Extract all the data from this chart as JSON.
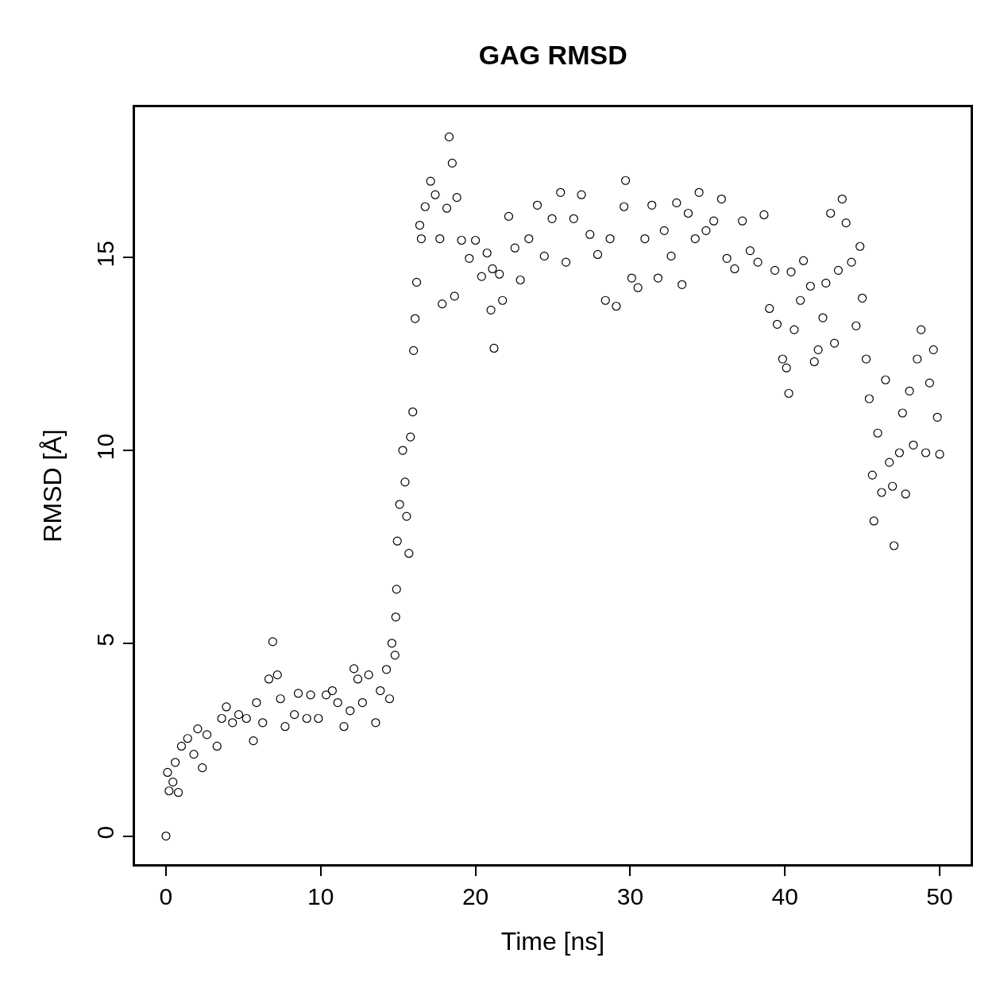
{
  "chart_data": {
    "type": "scatter",
    "title": "GAG RMSD",
    "xlabel": "Time [ns]",
    "ylabel": "RMSD [Å]",
    "xlim": [
      -2,
      52
    ],
    "xticks": [
      0,
      10,
      20,
      30,
      40,
      50
    ],
    "ylim": [
      -0.73,
      18.9
    ],
    "yticks": [
      0,
      5,
      10,
      15
    ],
    "marker": "circle",
    "x": [
      0,
      0.1,
      0.2,
      0.45,
      0.6,
      0.8,
      1.0,
      1.4,
      1.8,
      2.05,
      2.35,
      2.65,
      3.3,
      3.6,
      3.9,
      4.3,
      4.7,
      5.2,
      5.65,
      5.85,
      6.25,
      6.65,
      6.9,
      7.2,
      7.4,
      7.7,
      8.3,
      8.55,
      9.1,
      9.35,
      9.85,
      10.35,
      10.75,
      11.1,
      11.5,
      11.9,
      12.15,
      12.4,
      12.7,
      13.1,
      13.55,
      13.85,
      14.25,
      14.45,
      14.6,
      14.8,
      14.85,
      14.9,
      14.95,
      15.1,
      15.3,
      15.45,
      15.55,
      15.7,
      15.8,
      15.95,
      16.0,
      16.1,
      16.2,
      16.4,
      16.5,
      16.75,
      17.1,
      17.4,
      17.7,
      17.85,
      18.15,
      18.3,
      18.5,
      18.65,
      18.8,
      19.1,
      19.6,
      20.0,
      20.4,
      20.75,
      21.0,
      21.1,
      21.2,
      21.55,
      21.75,
      22.15,
      22.55,
      22.9,
      23.45,
      24.0,
      24.45,
      24.95,
      25.5,
      25.85,
      26.35,
      26.85,
      27.4,
      27.9,
      28.4,
      28.7,
      29.1,
      29.6,
      29.7,
      30.1,
      30.5,
      30.95,
      31.4,
      31.8,
      32.2,
      32.65,
      33.0,
      33.35,
      33.75,
      34.2,
      34.45,
      34.9,
      35.4,
      35.9,
      36.25,
      36.75,
      37.25,
      37.75,
      38.25,
      38.65,
      39.0,
      39.35,
      39.5,
      39.85,
      40.1,
      40.25,
      40.4,
      40.6,
      41.0,
      41.2,
      41.65,
      41.9,
      42.15,
      42.45,
      42.65,
      42.95,
      43.2,
      43.45,
      43.7,
      43.95,
      44.3,
      44.6,
      44.85,
      45.0,
      45.25,
      45.45,
      45.65,
      45.75,
      46.0,
      46.25,
      46.5,
      46.75,
      46.95,
      47.05,
      47.4,
      47.6,
      47.8,
      48.05,
      48.3,
      48.55,
      48.8,
      49.1,
      49.35,
      49.6,
      49.85,
      50.0
    ],
    "series": [
      {
        "color": "#000000",
        "values": [
          0,
          1.65,
          1.17,
          1.4,
          1.91,
          1.13,
          2.33,
          2.53,
          2.12,
          2.78,
          1.77,
          2.63,
          2.33,
          3.05,
          3.35,
          2.94,
          3.15,
          3.05,
          2.47,
          3.46,
          2.94,
          4.07,
          5.04,
          4.18,
          3.56,
          2.84,
          3.15,
          3.7,
          3.05,
          3.66,
          3.05,
          3.66,
          3.77,
          3.46,
          2.84,
          3.25,
          4.34,
          4.07,
          3.46,
          4.18,
          2.94,
          3.77,
          4.32,
          3.56,
          5.0,
          4.69,
          5.68,
          6.4,
          7.65,
          8.6,
          10.0,
          9.18,
          8.29,
          7.33,
          10.35,
          11.0,
          12.59,
          13.42,
          14.36,
          15.84,
          15.49,
          16.32,
          16.98,
          16.63,
          15.49,
          13.8,
          16.28,
          18.13,
          17.45,
          14.0,
          16.56,
          15.45,
          14.98,
          15.45,
          14.51,
          15.12,
          13.64,
          14.71,
          12.65,
          14.57,
          13.89,
          16.07,
          15.25,
          14.42,
          15.49,
          16.36,
          15.04,
          16.01,
          16.69,
          14.88,
          16.01,
          16.63,
          15.6,
          15.08,
          13.89,
          15.49,
          13.74,
          16.32,
          17.0,
          14.47,
          14.22,
          15.49,
          16.36,
          14.47,
          15.7,
          15.04,
          16.42,
          14.3,
          16.15,
          15.49,
          16.69,
          15.7,
          15.95,
          16.52,
          14.98,
          14.71,
          15.95,
          15.18,
          14.88,
          16.11,
          13.68,
          14.67,
          13.27,
          12.37,
          12.14,
          11.48,
          14.63,
          13.13,
          13.89,
          14.92,
          14.26,
          12.3,
          12.61,
          13.44,
          14.34,
          16.15,
          12.78,
          14.67,
          16.52,
          15.9,
          14.88,
          13.23,
          15.29,
          13.95,
          12.37,
          11.34,
          9.36,
          8.17,
          10.45,
          8.91,
          11.83,
          9.69,
          9.07,
          7.53,
          9.94,
          10.97,
          8.87,
          11.54,
          10.14,
          12.37,
          13.13,
          9.94,
          11.75,
          12.61,
          10.86,
          9.9
        ]
      }
    ]
  }
}
